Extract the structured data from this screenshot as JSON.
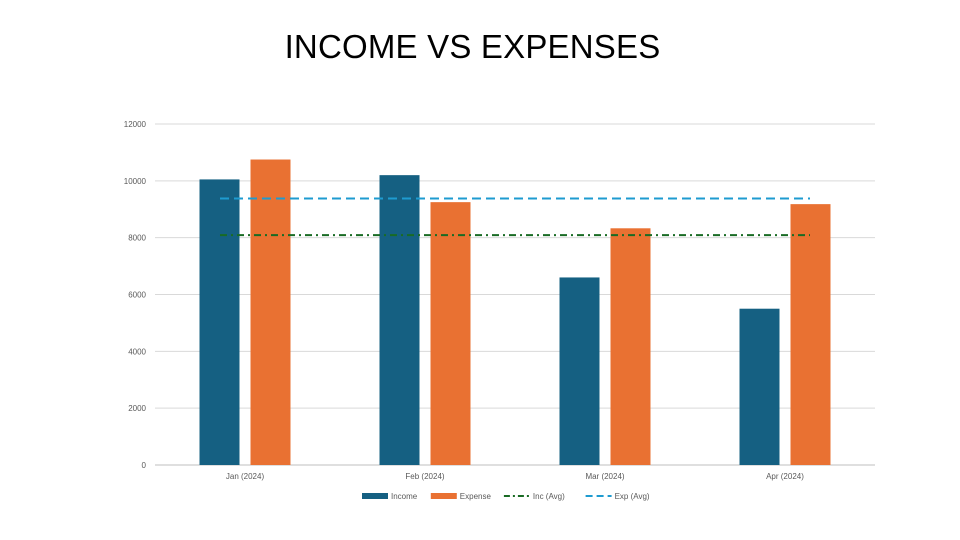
{
  "slide": {
    "title": "INCOME VS EXPENSES"
  },
  "chart_data": {
    "type": "bar",
    "title": "INCOME VS EXPENSES",
    "categories": [
      "Jan (2024)",
      "Feb (2024)",
      "Mar (2024)",
      "Apr (2024)"
    ],
    "series": [
      {
        "name": "Income",
        "type": "bar",
        "color": "#156082",
        "values": [
          10050,
          10200,
          6600,
          5500
        ]
      },
      {
        "name": "Expense",
        "type": "bar",
        "color": "#E97132",
        "values": [
          10750,
          9250,
          8330,
          9180
        ]
      },
      {
        "name": "Inc (Avg)",
        "type": "line",
        "style": "dash-dot",
        "color": "#196B24",
        "values": [
          8090,
          8090,
          8090,
          8090
        ]
      },
      {
        "name": "Exp (Avg)",
        "type": "line",
        "style": "dashed",
        "color": "#1E9BD0",
        "values": [
          9380,
          9380,
          9380,
          9380
        ]
      }
    ],
    "yticks": [
      "0",
      "2000",
      "4000",
      "6000",
      "8000",
      "10000",
      "12000"
    ],
    "ylim": [
      0,
      12000
    ],
    "xlabel": "",
    "ylabel": "",
    "grid": true,
    "legend_position": "bottom"
  },
  "colors": {
    "income": "#156082",
    "expense": "#E97132",
    "inc_avg": "#196B24",
    "exp_avg": "#1E9BD0",
    "grid": "#D9D9D9"
  }
}
